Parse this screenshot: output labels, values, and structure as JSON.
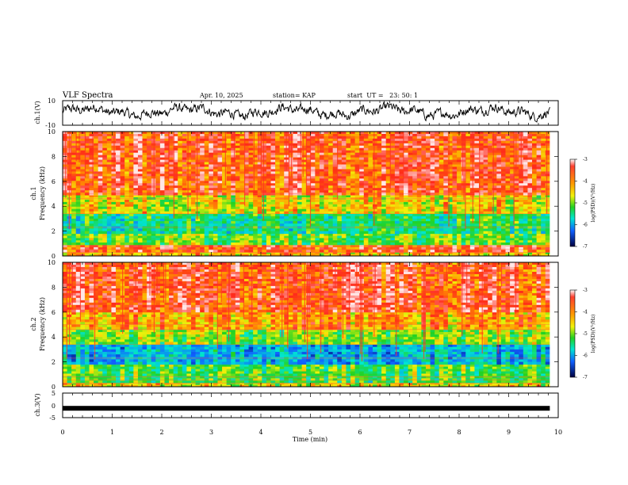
{
  "header": {
    "title": "VLF Spectra",
    "date": "Apr. 10, 2025",
    "station": "station= KAP",
    "start": "start  UT =   23: 50: 1"
  },
  "chart_data": [
    {
      "type": "line",
      "name": "ch.1 waveform",
      "ylabel": "ch.1(V)",
      "ylim": [
        -10,
        10
      ],
      "yticks": [
        "10",
        "-10"
      ],
      "xlim": [
        0,
        10
      ],
      "data_extent_min": 9.83,
      "description_level": "noisy trace, mostly between -4 and 5 V"
    },
    {
      "type": "heatmap",
      "name": "ch.1 spectrogram",
      "ylabel": "ch.1\nFrequency (kHz)",
      "ylabel_top": "ch.1",
      "ylabel_bottom": "Frequency (kHz)",
      "ylim": [
        0,
        10
      ],
      "yticks": [
        "0",
        "2",
        "4",
        "6",
        "8",
        "10"
      ],
      "xlim": [
        0,
        10
      ],
      "colorbar": {
        "label": "log(PSD)(V²/Hz)",
        "range": [
          -7,
          -3
        ],
        "ticks": [
          "-3",
          "-4",
          "-5",
          "-6",
          "-7"
        ]
      },
      "bands": [
        {
          "from": 0,
          "to": 0.3,
          "level": -4.2
        },
        {
          "from": 0.3,
          "to": 0.9,
          "level": -3.6
        },
        {
          "from": 0.9,
          "to": 1.8,
          "level": -4.9
        },
        {
          "from": 1.8,
          "to": 3.4,
          "level": -5.3
        },
        {
          "from": 3.4,
          "to": 4.9,
          "level": -4.4
        },
        {
          "from": 4.9,
          "to": 10,
          "level": -3.6
        }
      ]
    },
    {
      "type": "heatmap",
      "name": "ch.2 spectrogram",
      "ylabel_top": "ch.2",
      "ylabel_bottom": "Frequency (kHz)",
      "ylim": [
        0,
        10
      ],
      "yticks": [
        "0",
        "2",
        "4",
        "6",
        "8",
        "10"
      ],
      "xlim": [
        0,
        10
      ],
      "colorbar": {
        "label": "log(PSD)(V²/Hz)",
        "range": [
          -7,
          -3
        ],
        "ticks": [
          "-3",
          "-4",
          "-5",
          "-6",
          "-7"
        ]
      },
      "bands": [
        {
          "from": 0,
          "to": 0.3,
          "level": -4.4
        },
        {
          "from": 0.3,
          "to": 1.8,
          "level": -5.0
        },
        {
          "from": 1.8,
          "to": 3.4,
          "level": -5.8
        },
        {
          "from": 3.4,
          "to": 4.6,
          "level": -4.8
        },
        {
          "from": 4.6,
          "to": 6.0,
          "level": -4.1
        },
        {
          "from": 6.0,
          "to": 10,
          "level": -3.6
        }
      ]
    },
    {
      "type": "line",
      "name": "ch.3 trace",
      "ylabel": "ch.3(V)",
      "ylim": [
        -5,
        5
      ],
      "yticks": [
        "5",
        "0",
        "-5"
      ],
      "xlim": [
        0,
        10
      ],
      "level": -1.2,
      "xlabel": "Time (min)",
      "xticks": [
        "0",
        "1",
        "2",
        "3",
        "4",
        "5",
        "6",
        "7",
        "8",
        "9",
        "10"
      ]
    }
  ],
  "colors": {
    "red": "#ff2a1a",
    "orange": "#ff9a00",
    "yellow": "#f2f20a",
    "green": "#22d222",
    "cyan": "#00e6d2",
    "blue": "#1060ff",
    "navy": "#000060"
  }
}
